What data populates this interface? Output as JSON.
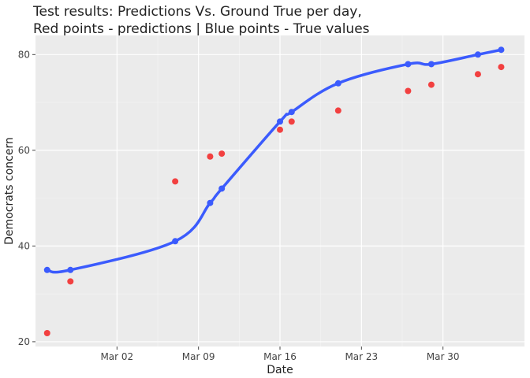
{
  "chart_data": {
    "type": "scatter",
    "title_lines": [
      "Test results: Predictions Vs. Ground True per day,",
      "Red points - predictions | Blue points - True values"
    ],
    "xlabel": "Date",
    "ylabel": "Democrats concern",
    "x_ticks": [
      {
        "date": "2020-03-02",
        "label": "Mar 02"
      },
      {
        "date": "2020-03-09",
        "label": "Mar 09"
      },
      {
        "date": "2020-03-16",
        "label": "Mar 16"
      },
      {
        "date": "2020-03-23",
        "label": "Mar 23"
      },
      {
        "date": "2020-03-30",
        "label": "Mar 30"
      }
    ],
    "y_ticks": [
      20,
      40,
      60,
      80
    ],
    "xlim": [
      "2020-02-24",
      "2020-04-06"
    ],
    "ylim": [
      19,
      84
    ],
    "grid": true,
    "background": "#ebebeb",
    "series": [
      {
        "color": "#3b5bfd",
        "mode": "lines+markers",
        "points": [
          {
            "x": "2020-02-25",
            "y": 35
          },
          {
            "x": "2020-02-27",
            "y": 35
          },
          {
            "x": "2020-03-07",
            "y": 41
          },
          {
            "x": "2020-03-10",
            "y": 49
          },
          {
            "x": "2020-03-11",
            "y": 52
          },
          {
            "x": "2020-03-16",
            "y": 66
          },
          {
            "x": "2020-03-17",
            "y": 68
          },
          {
            "x": "2020-03-21",
            "y": 74
          },
          {
            "x": "2020-03-27",
            "y": 78
          },
          {
            "x": "2020-03-29",
            "y": 78
          },
          {
            "x": "2020-04-02",
            "y": 80
          },
          {
            "x": "2020-04-04",
            "y": 81
          }
        ]
      },
      {
        "color": "#f24040",
        "mode": "markers",
        "points": [
          {
            "x": "2020-02-25",
            "y": 21.8
          },
          {
            "x": "2020-02-27",
            "y": 32.6
          },
          {
            "x": "2020-03-07",
            "y": 53.5
          },
          {
            "x": "2020-03-10",
            "y": 58.7
          },
          {
            "x": "2020-03-11",
            "y": 59.3
          },
          {
            "x": "2020-03-16",
            "y": 64.3
          },
          {
            "x": "2020-03-17",
            "y": 66.0
          },
          {
            "x": "2020-03-21",
            "y": 68.3
          },
          {
            "x": "2020-03-27",
            "y": 72.4
          },
          {
            "x": "2020-03-29",
            "y": 73.7
          },
          {
            "x": "2020-04-02",
            "y": 75.9
          },
          {
            "x": "2020-04-04",
            "y": 77.4
          }
        ]
      }
    ]
  }
}
